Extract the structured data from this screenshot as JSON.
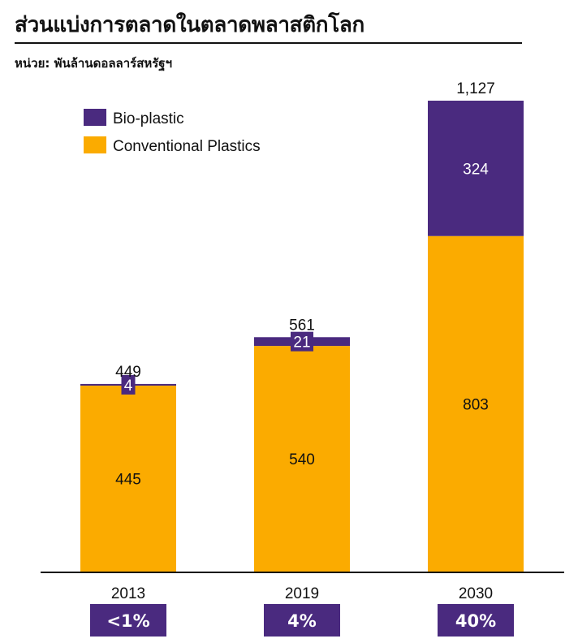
{
  "title": "ส่วนแบ่งการตลาดในตลาดพลาสติกโลก",
  "subtitle": "หน่วย: พันล้านดอลลาร์สหรัฐฯ",
  "colors": {
    "bio": "#4a2a7f",
    "conventional": "#fbab00",
    "axis": "#111111"
  },
  "chart_data": {
    "type": "bar",
    "stacked": true,
    "title": "ส่วนแบ่งการตลาดในตลาดพลาสติกโลก",
    "ylabel": "หน่วย: พันล้านดอลลาร์สหรัฐฯ",
    "categories": [
      "2013",
      "2019",
      "2030"
    ],
    "series": [
      {
        "name": "Conventional Plastics",
        "values": [
          445,
          540,
          803
        ]
      },
      {
        "name": "Bio-plastic",
        "values": [
          4,
          21,
          324
        ]
      }
    ],
    "totals": [
      "449",
      "561",
      "1,127"
    ],
    "bio_labels": [
      "4",
      "21",
      "324"
    ],
    "conventional_labels": [
      "445",
      "540",
      "803"
    ],
    "bio_share_labels": [
      "<1%",
      "4%",
      "40%"
    ],
    "legend": [
      "Bio-plastic",
      "Conventional Plastics"
    ],
    "legend_position": "top-left",
    "ylim": [
      0,
      1127
    ],
    "grid": false
  }
}
